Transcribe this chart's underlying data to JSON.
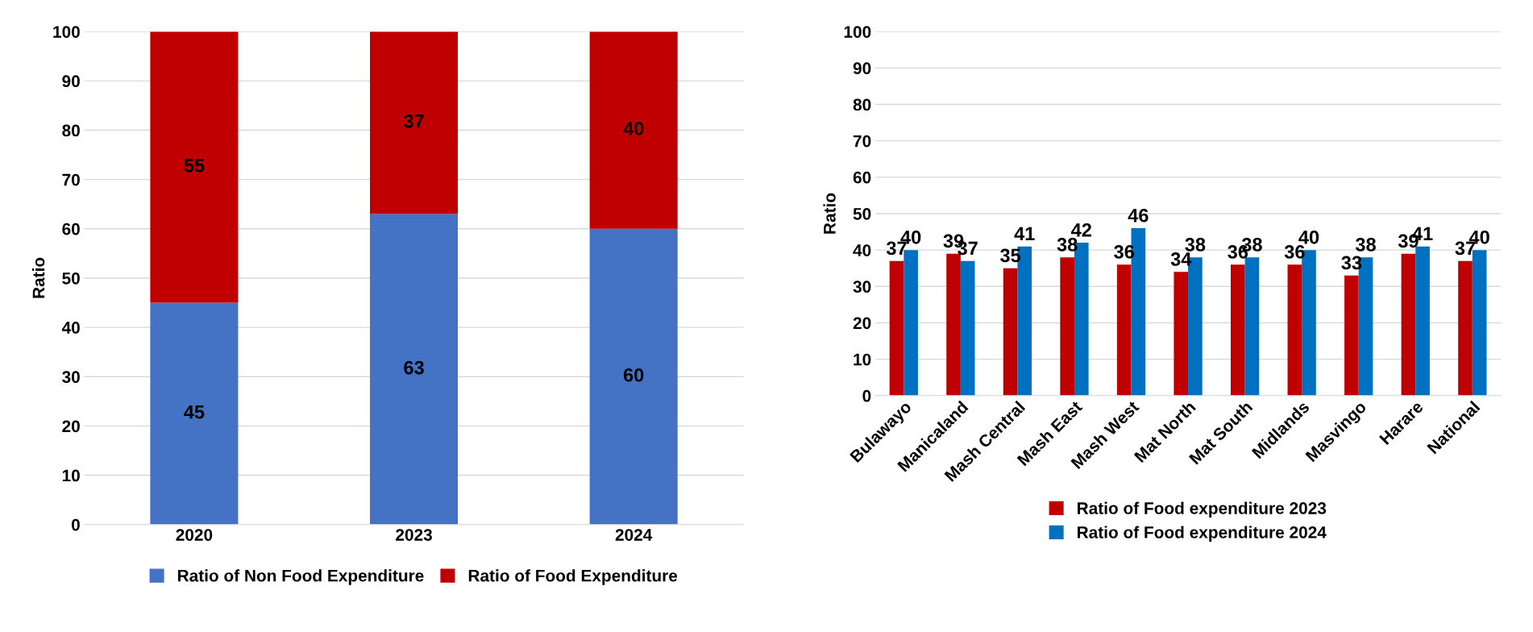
{
  "chart_data": [
    {
      "type": "bar",
      "stacked": true,
      "categories": [
        "2020",
        "2023",
        "2024"
      ],
      "ylabel": "Ratio",
      "ylim": [
        0,
        100
      ],
      "yticks": [
        0,
        10,
        20,
        30,
        40,
        50,
        60,
        70,
        80,
        90,
        100
      ],
      "grid": "y",
      "legend": "bottom",
      "data_labels": true,
      "series": [
        {
          "name": "Ratio of Non Food Expenditure",
          "color": "#4472c4",
          "values": [
            45,
            63,
            60
          ]
        },
        {
          "name": "Ratio of Food Expenditure",
          "color": "#c00000",
          "values": [
            55,
            37,
            40
          ]
        }
      ]
    },
    {
      "type": "bar",
      "categories": [
        "Bulawayo",
        "Manicaland",
        "Mash Central",
        "Mash East",
        "Mash West",
        "Mat North",
        "Mat South",
        "Midlands",
        "Masvingo",
        "Harare",
        "National"
      ],
      "ylabel": "Ratio",
      "ylim": [
        0,
        100
      ],
      "yticks": [
        0,
        10,
        20,
        30,
        40,
        50,
        60,
        70,
        80,
        90,
        100
      ],
      "grid": "y",
      "legend": "bottom",
      "data_labels": true,
      "series": [
        {
          "name": "Ratio of Food expenditure 2023",
          "color": "#c00000",
          "values": [
            37,
            39,
            35,
            38,
            36,
            34,
            36,
            36,
            33,
            39,
            37
          ]
        },
        {
          "name": "Ratio of Food expenditure 2024",
          "color": "#0070c0",
          "values": [
            40,
            37,
            41,
            42,
            46,
            38,
            38,
            40,
            38,
            41,
            40
          ]
        }
      ]
    }
  ]
}
